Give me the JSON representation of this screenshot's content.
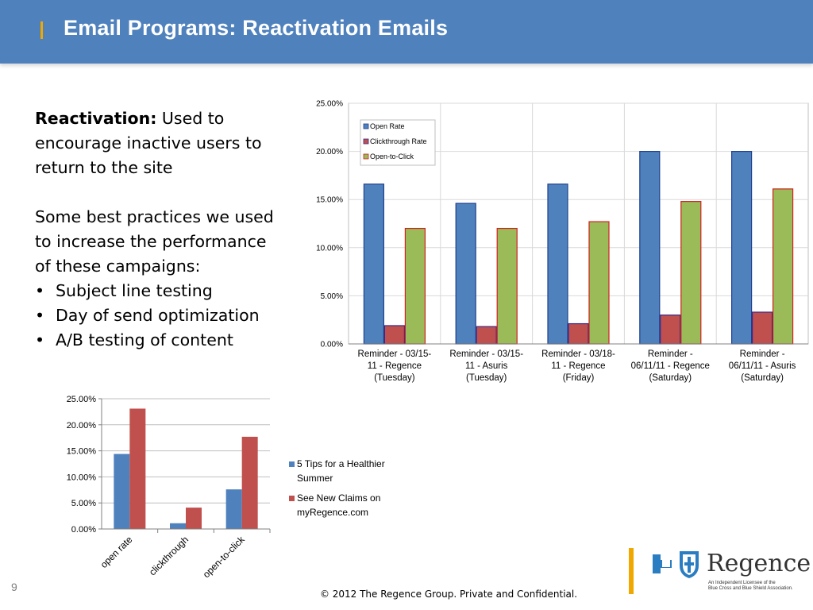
{
  "slide": {
    "title": "Email Programs: Reactivation Emails",
    "intro_bold": "Reactivation:",
    "intro_line1_rest": " Used to",
    "intro_line2": "encourage inactive users to",
    "intro_line3": "return to the site",
    "practices_line1": "Some best practices we used",
    "practices_line2": "to increase the performance",
    "practices_line3": "of these campaigns:",
    "bullets": [
      "Subject line testing",
      "Day of send optimization",
      "A/B testing of content"
    ],
    "page_number": "9",
    "copyright": "© 2012 The Regence Group. Private and Confidential.",
    "logo_text": "Regence",
    "logo_subtext_line1": "An Independent Licensee of the",
    "logo_subtext_line2": "Blue Cross and Blue Shield Association."
  },
  "colors": {
    "header": "#4f81bd",
    "accent": "#f0a800",
    "series_blue": "#4f81bd",
    "series_red": "#c0504d",
    "series_green": "#9bbb59"
  },
  "chart_data": [
    {
      "type": "bar",
      "categories": [
        [
          "Reminder - 03/15-",
          "11 - Regence",
          "(Tuesday)"
        ],
        [
          "Reminder - 03/15-",
          "11 - Asuris",
          "(Tuesday)"
        ],
        [
          "Reminder - 03/18-",
          "11 - Regence",
          "(Friday)"
        ],
        [
          "Reminder -",
          "06/11/11 - Regence",
          "(Saturday)"
        ],
        [
          "Reminder -",
          "06/11/11 - Asuris",
          "(Saturday)"
        ]
      ],
      "series": [
        {
          "name": "Open Rate",
          "color": "#4f81bd",
          "values": [
            16.6,
            14.6,
            16.6,
            20.0,
            20.0
          ]
        },
        {
          "name": "Clickthrough Rate",
          "color": "#c0504d",
          "values": [
            1.9,
            1.8,
            2.1,
            3.0,
            3.3
          ]
        },
        {
          "name": "Open-to-Click",
          "color": "#9bbb59",
          "values": [
            12.0,
            12.0,
            12.7,
            14.8,
            16.1
          ]
        }
      ],
      "yticks": [
        "0.00%",
        "5.00%",
        "10.00%",
        "15.00%",
        "20.00%",
        "25.00%"
      ],
      "ylim": [
        0,
        25
      ],
      "grid": true,
      "legend_position": "top-left inside"
    },
    {
      "type": "bar",
      "categories": [
        "open rate",
        "clickthrough",
        "open-to-click"
      ],
      "series": [
        {
          "name": "5 Tips for a Healthier Summer",
          "color": "#4f81bd",
          "values": [
            14.4,
            1.1,
            7.6
          ]
        },
        {
          "name": "See New Claims on myRegence.com",
          "color": "#c0504d",
          "values": [
            23.1,
            4.1,
            17.7
          ]
        }
      ],
      "legend_lines": [
        [
          "5 Tips for a Healthier",
          "Summer"
        ],
        [
          "See New Claims on",
          "myRegence.com"
        ]
      ],
      "yticks": [
        "0.00%",
        "5.00%",
        "10.00%",
        "15.00%",
        "20.00%",
        "25.00%"
      ],
      "ylim": [
        0,
        25
      ],
      "grid": true,
      "legend_position": "right"
    }
  ]
}
